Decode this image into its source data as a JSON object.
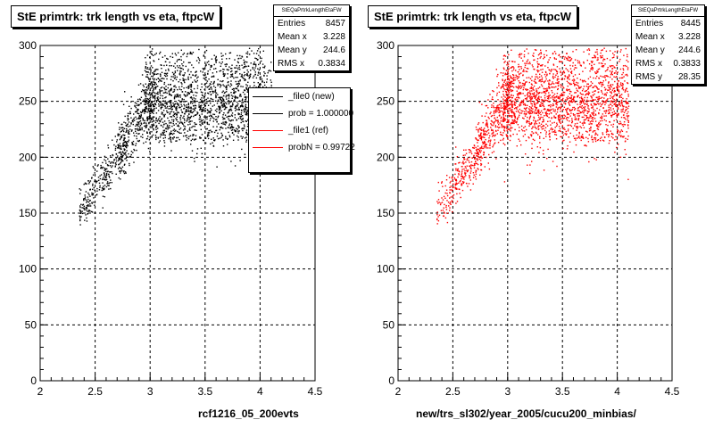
{
  "panels": [
    {
      "title": "StE primtrk: trk length vs eta, ftpcW",
      "stats": {
        "name": "StEQaPrtrkLengthEtaFW",
        "rows": [
          {
            "label": "Entries",
            "value": "8457"
          },
          {
            "label": "Mean x",
            "value": "3.228"
          },
          {
            "label": "Mean y",
            "value": "244.6"
          },
          {
            "label": "RMS x",
            "value": "0.3834"
          }
        ]
      },
      "legend": [
        {
          "label": "_file0 (new)",
          "color": "#000000"
        },
        {
          "label": "prob = 1.000000",
          "color": "#000000"
        },
        {
          "label": "_file1 (ref)",
          "color": "#ff0000"
        },
        {
          "label": "probN = 0.99722",
          "color": "#ff0000"
        }
      ],
      "xtitle": "rcf1216_05_200evts",
      "color": "#000000"
    },
    {
      "title": "StE primtrk: trk length vs eta, ftpcW",
      "stats": {
        "name": "StEQaPrtrkLengthEtaFW",
        "rows": [
          {
            "label": "Entries",
            "value": "8445"
          },
          {
            "label": "Mean x",
            "value": "3.228"
          },
          {
            "label": "Mean y",
            "value": "244.6"
          },
          {
            "label": "RMS x",
            "value": "0.3833"
          },
          {
            "label": "RMS y",
            "value": "28.35"
          }
        ]
      },
      "xtitle": "new/trs_sl302/year_2005/cucu200_minbias/",
      "color": "#ff0000"
    }
  ],
  "chart_data": [
    {
      "type": "scatter",
      "title": "StE primtrk: trk length vs eta, ftpcW",
      "xlabel": "rcf1216_05_200evts",
      "ylabel": "",
      "xlim": [
        2,
        4.5
      ],
      "ylim": [
        0,
        300
      ],
      "xticks": [
        "2",
        "2.5",
        "3",
        "3.5",
        "4",
        "4.5"
      ],
      "yticks": [
        "0",
        "50",
        "100",
        "150",
        "200",
        "250",
        "300"
      ],
      "grid": true,
      "legend_position": "top-right",
      "series": [
        {
          "color": "#000000",
          "entries": 8457,
          "mean_x": 3.228,
          "mean_y": 244.6,
          "rms_x": 0.3834
        }
      ]
    },
    {
      "type": "scatter",
      "title": "StE primtrk: trk length vs eta, ftpcW",
      "xlabel": "new/trs_sl302/year_2005/cucu200_minbias/",
      "ylabel": "",
      "xlim": [
        2,
        4.5
      ],
      "ylim": [
        0,
        300
      ],
      "xticks": [
        "2",
        "2.5",
        "3",
        "3.5",
        "4",
        "4.5"
      ],
      "yticks": [
        "0",
        "50",
        "100",
        "150",
        "200",
        "250",
        "300"
      ],
      "grid": true,
      "series": [
        {
          "color": "#ff0000",
          "entries": 8445,
          "mean_x": 3.228,
          "mean_y": 244.6,
          "rms_x": 0.3833,
          "rms_y": 28.35
        }
      ]
    }
  ]
}
